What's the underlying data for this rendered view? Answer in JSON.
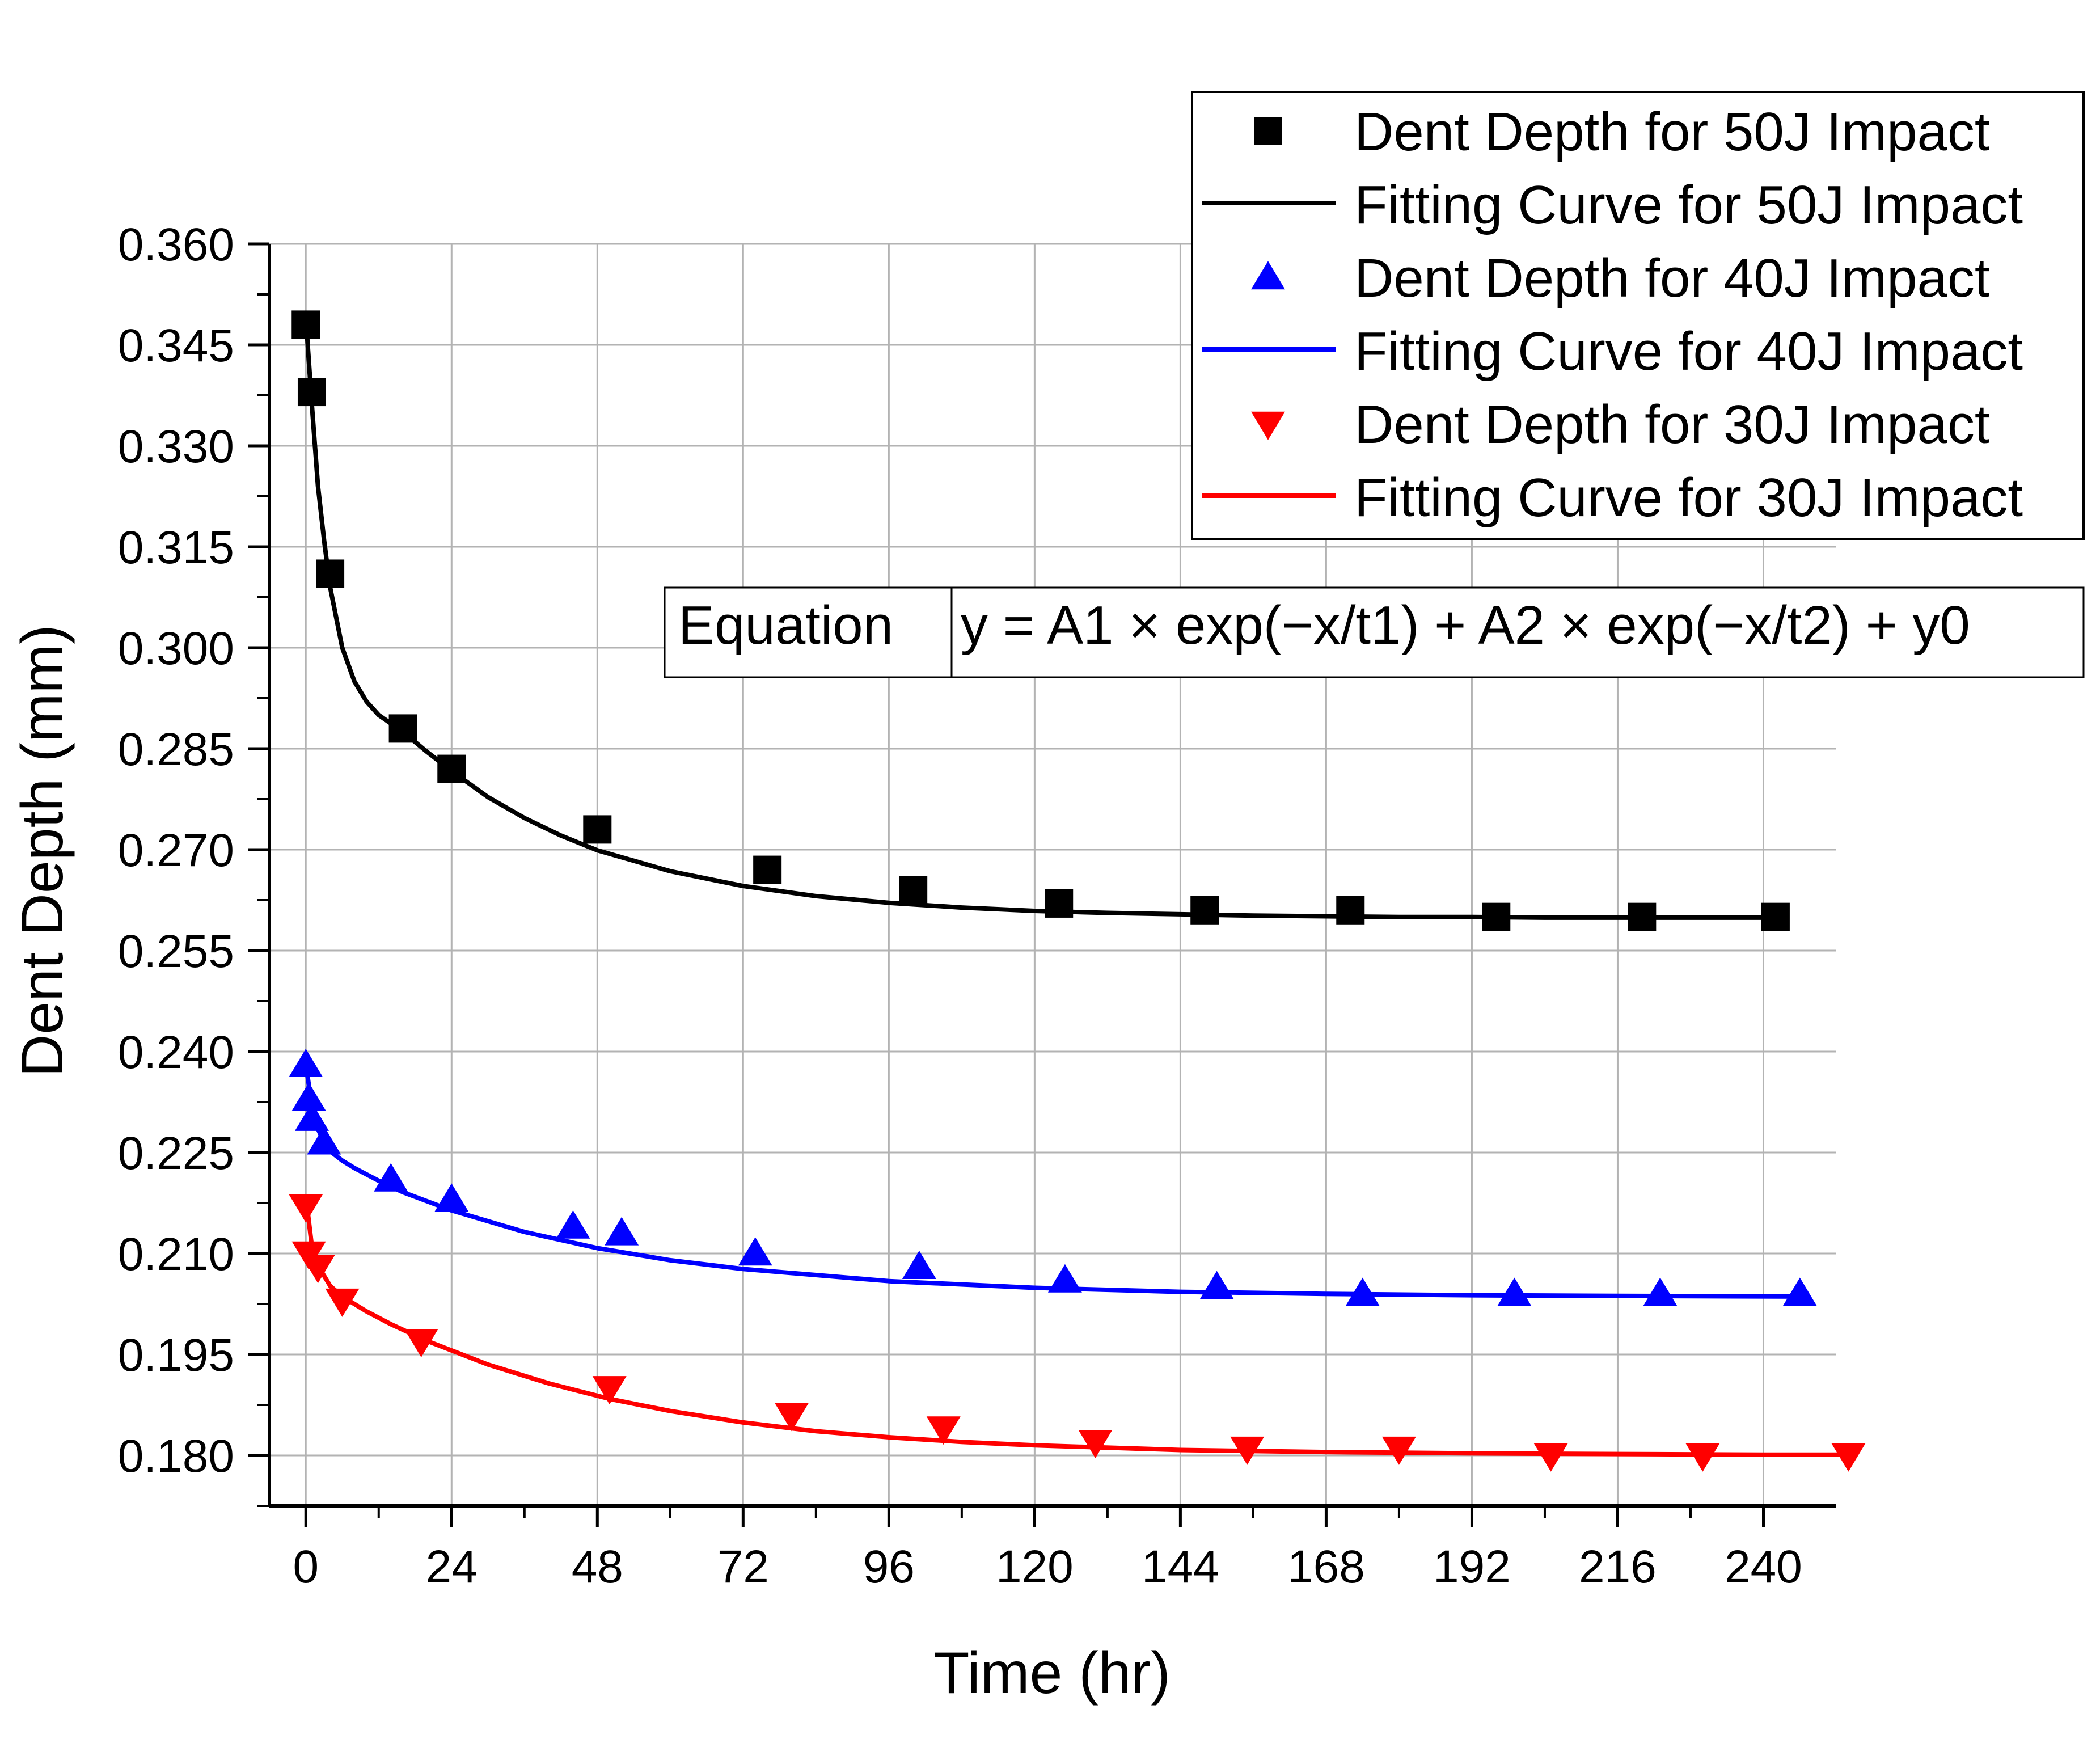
{
  "chart_data": {
    "type": "scatter",
    "title": "",
    "xlabel": "Time (hr)",
    "ylabel": "Dent Depth (mm)",
    "xlim": [
      -6,
      252
    ],
    "ylim": [
      0.1725,
      0.36
    ],
    "xticks": [
      0,
      24,
      48,
      72,
      96,
      120,
      144,
      168,
      192,
      216,
      240
    ],
    "xtick_labels": [
      "0",
      "24",
      "48",
      "72",
      "96",
      "120",
      "144",
      "168",
      "192",
      "216",
      "240"
    ],
    "yticks": [
      0.18,
      0.195,
      0.21,
      0.225,
      0.24,
      0.255,
      0.27,
      0.285,
      0.3,
      0.315,
      0.33,
      0.345,
      0.36
    ],
    "ytick_labels": [
      "0.180",
      "0.195",
      "0.210",
      "0.225",
      "0.240",
      "0.255",
      "0.270",
      "0.285",
      "0.300",
      "0.315",
      "0.330",
      "0.345",
      "0.360"
    ],
    "grid": true,
    "legend_position": "top-right",
    "equation": {
      "label": "Equation",
      "formula": "y = A1 × exp(−x/t1) + A2 × exp(−x/t2) + y0"
    },
    "series": [
      {
        "name": "Dent Depth for 50J Impact",
        "kind": "points",
        "marker": "square",
        "color": "#000000",
        "x": [
          0,
          1,
          4,
          16,
          24,
          48,
          76,
          100,
          124,
          148,
          172,
          196,
          220,
          242
        ],
        "y": [
          0.348,
          0.338,
          0.311,
          0.288,
          0.282,
          0.273,
          0.267,
          0.264,
          0.262,
          0.261,
          0.261,
          0.26,
          0.26,
          0.26
        ]
      },
      {
        "name": "Fitting Curve for 50J Impact",
        "kind": "line",
        "color": "#000000",
        "x": [
          0,
          1,
          2,
          3,
          4,
          6,
          8,
          10,
          12,
          16,
          20,
          24,
          30,
          36,
          42,
          48,
          60,
          72,
          84,
          96,
          108,
          120,
          132,
          144,
          156,
          168,
          180,
          192,
          204,
          216,
          228,
          242
        ],
        "y": [
          0.349,
          0.336,
          0.324,
          0.316,
          0.309,
          0.3,
          0.295,
          0.292,
          0.29,
          0.2875,
          0.2845,
          0.2817,
          0.2778,
          0.2747,
          0.2721,
          0.2699,
          0.2668,
          0.2646,
          0.2631,
          0.2621,
          0.2614,
          0.2609,
          0.2606,
          0.2604,
          0.2602,
          0.2601,
          0.26,
          0.26,
          0.2599,
          0.2599,
          0.2599,
          0.2599
        ]
      },
      {
        "name": "Dent Depth for 40J Impact",
        "kind": "points",
        "marker": "triangle-up",
        "color": "#0000ff",
        "x": [
          0,
          0.5,
          1,
          3,
          14,
          24,
          44,
          52,
          74,
          101,
          125,
          150,
          174,
          199,
          223,
          246
        ],
        "y": [
          0.238,
          0.233,
          0.23,
          0.2265,
          0.221,
          0.218,
          0.214,
          0.213,
          0.21,
          0.208,
          0.206,
          0.205,
          0.204,
          0.204,
          0.204,
          0.204
        ]
      },
      {
        "name": "Fitting Curve for 40J Impact",
        "kind": "line",
        "color": "#0000ff",
        "x": [
          0,
          1,
          2,
          3,
          4,
          6,
          8,
          12,
          16,
          24,
          36,
          48,
          60,
          72,
          96,
          120,
          144,
          168,
          192,
          216,
          246
        ],
        "y": [
          0.238,
          0.232,
          0.2285,
          0.2265,
          0.2252,
          0.2238,
          0.2227,
          0.2208,
          0.2191,
          0.2164,
          0.2132,
          0.2108,
          0.209,
          0.2077,
          0.2059,
          0.2049,
          0.2043,
          0.204,
          0.2038,
          0.2037,
          0.2036
        ]
      },
      {
        "name": "Dent Depth for 30J Impact",
        "kind": "points",
        "marker": "triangle-down",
        "color": "#ff0000",
        "x": [
          0,
          0.5,
          2,
          6,
          19,
          50,
          80,
          105,
          130,
          155,
          180,
          205,
          230,
          254
        ],
        "y": [
          0.217,
          0.21,
          0.208,
          0.203,
          0.197,
          0.19,
          0.186,
          0.184,
          0.182,
          0.181,
          0.181,
          0.18,
          0.18,
          0.18
        ]
      },
      {
        "name": "Fitting Curve for 30J Impact",
        "kind": "line",
        "color": "#ff0000",
        "x": [
          0,
          1,
          2,
          4,
          6,
          10,
          14,
          20,
          30,
          40,
          50,
          60,
          72,
          84,
          96,
          108,
          120,
          144,
          168,
          192,
          216,
          240,
          254
        ],
        "y": [
          0.2185,
          0.211,
          0.2082,
          0.2052,
          0.2036,
          0.2014,
          0.1995,
          0.197,
          0.1935,
          0.1907,
          0.1884,
          0.1866,
          0.1849,
          0.1836,
          0.1827,
          0.182,
          0.1815,
          0.1808,
          0.1805,
          0.1803,
          0.1802,
          0.1801,
          0.1801
        ]
      }
    ]
  }
}
